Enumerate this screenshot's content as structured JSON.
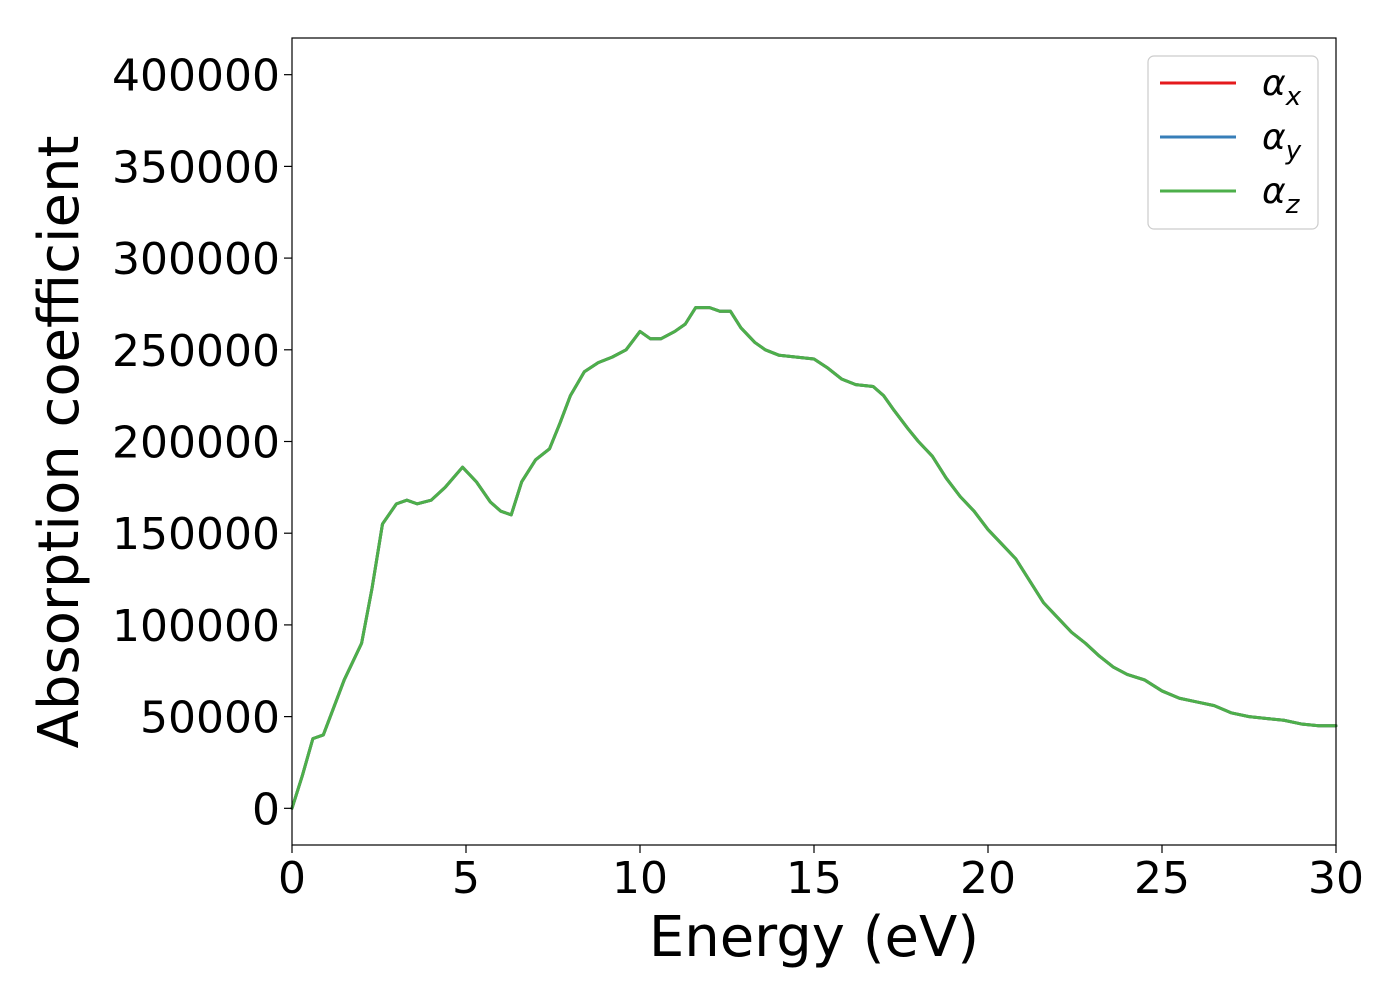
{
  "chart_data": {
    "type": "line",
    "title": "",
    "xlabel": "Energy (eV)",
    "ylabel": "Absorption coefficient",
    "xlim": [
      0,
      30
    ],
    "ylim": [
      -20000,
      420000
    ],
    "xticks": [
      0,
      5,
      10,
      15,
      20,
      25,
      30
    ],
    "yticks": [
      0,
      50000,
      100000,
      150000,
      200000,
      250000,
      300000,
      350000,
      400000
    ],
    "grid": false,
    "legend_position": "top-right",
    "legend": [
      {
        "symbol": "α",
        "subscript": "x",
        "color": "#e41a1c"
      },
      {
        "symbol": "α",
        "subscript": "y",
        "color": "#377eb8"
      },
      {
        "symbol": "α",
        "subscript": "z",
        "color": "#4daf4a"
      }
    ],
    "series": [
      {
        "legend_index": 0,
        "color": "#e41a1c",
        "x": [
          0,
          0.3,
          0.6,
          0.9,
          1.2,
          1.5,
          2.0,
          2.3,
          2.6,
          3.0,
          3.3,
          3.6,
          4.0,
          4.4,
          4.9,
          5.3,
          5.7,
          6.0,
          6.3,
          6.6,
          7.0,
          7.4,
          7.7,
          8.0,
          8.4,
          8.8,
          9.2,
          9.6,
          10.0,
          10.3,
          10.6,
          11.0,
          11.3,
          11.6,
          12.0,
          12.3,
          12.6,
          12.9,
          13.3,
          13.6,
          14.0,
          14.5,
          15.0,
          15.4,
          15.8,
          16.2,
          16.7,
          17.0,
          17.3,
          17.7,
          18.0,
          18.4,
          18.8,
          19.2,
          19.6,
          20.0,
          20.4,
          20.8,
          21.2,
          21.6,
          22.0,
          22.4,
          22.8,
          23.2,
          23.6,
          24.0,
          24.5,
          25.0,
          25.5,
          26.0,
          26.5,
          27.0,
          27.5,
          28.0,
          28.5,
          29.0,
          29.5,
          30.0
        ],
        "values": [
          0,
          18000,
          38000,
          40000,
          55000,
          70000,
          90000,
          120000,
          155000,
          166000,
          168000,
          166000,
          168000,
          175000,
          186000,
          178000,
          167000,
          162000,
          160000,
          178000,
          190000,
          196000,
          210000,
          225000,
          238000,
          243000,
          246000,
          250000,
          260000,
          256000,
          256000,
          260000,
          264000,
          273000,
          273000,
          271000,
          271000,
          262000,
          254000,
          250000,
          247000,
          246000,
          245000,
          240000,
          234000,
          231000,
          230000,
          225000,
          217000,
          207000,
          200000,
          192000,
          180000,
          170000,
          162000,
          152000,
          144000,
          136000,
          124000,
          112000,
          104000,
          96000,
          90000,
          83000,
          77000,
          73000,
          70000,
          64000,
          60000,
          58000,
          56000,
          52000,
          50000,
          49000,
          48000,
          46000,
          45000,
          45000
        ]
      },
      {
        "legend_index": 1,
        "color": "#377eb8",
        "x": [
          0,
          0.3,
          0.6,
          0.9,
          1.2,
          1.5,
          2.0,
          2.3,
          2.6,
          3.0,
          3.3,
          3.6,
          4.0,
          4.4,
          4.9,
          5.3,
          5.7,
          6.0,
          6.3,
          6.6,
          7.0,
          7.4,
          7.7,
          8.0,
          8.4,
          8.8,
          9.2,
          9.6,
          10.0,
          10.3,
          10.6,
          11.0,
          11.3,
          11.6,
          12.0,
          12.3,
          12.6,
          12.9,
          13.3,
          13.6,
          14.0,
          14.5,
          15.0,
          15.4,
          15.8,
          16.2,
          16.7,
          17.0,
          17.3,
          17.7,
          18.0,
          18.4,
          18.8,
          19.2,
          19.6,
          20.0,
          20.4,
          20.8,
          21.2,
          21.6,
          22.0,
          22.4,
          22.8,
          23.2,
          23.6,
          24.0,
          24.5,
          25.0,
          25.5,
          26.0,
          26.5,
          27.0,
          27.5,
          28.0,
          28.5,
          29.0,
          29.5,
          30.0
        ],
        "values": [
          0,
          18000,
          38000,
          40000,
          55000,
          70000,
          90000,
          120000,
          155000,
          166000,
          168000,
          166000,
          168000,
          175000,
          186000,
          178000,
          167000,
          162000,
          160000,
          178000,
          190000,
          196000,
          210000,
          225000,
          238000,
          243000,
          246000,
          250000,
          260000,
          256000,
          256000,
          260000,
          264000,
          273000,
          273000,
          271000,
          271000,
          262000,
          254000,
          250000,
          247000,
          246000,
          245000,
          240000,
          234000,
          231000,
          230000,
          225000,
          217000,
          207000,
          200000,
          192000,
          180000,
          170000,
          162000,
          152000,
          144000,
          136000,
          124000,
          112000,
          104000,
          96000,
          90000,
          83000,
          77000,
          73000,
          70000,
          64000,
          60000,
          58000,
          56000,
          52000,
          50000,
          49000,
          48000,
          46000,
          45000,
          45000
        ]
      },
      {
        "legend_index": 2,
        "color": "#4daf4a",
        "x": [
          0,
          0.3,
          0.6,
          0.9,
          1.2,
          1.5,
          2.0,
          2.3,
          2.6,
          3.0,
          3.3,
          3.6,
          4.0,
          4.4,
          4.9,
          5.3,
          5.7,
          6.0,
          6.3,
          6.6,
          7.0,
          7.4,
          7.7,
          8.0,
          8.4,
          8.8,
          9.2,
          9.6,
          10.0,
          10.3,
          10.6,
          11.0,
          11.3,
          11.6,
          12.0,
          12.3,
          12.6,
          12.9,
          13.3,
          13.6,
          14.0,
          14.5,
          15.0,
          15.4,
          15.8,
          16.2,
          16.7,
          17.0,
          17.3,
          17.7,
          18.0,
          18.4,
          18.8,
          19.2,
          19.6,
          20.0,
          20.4,
          20.8,
          21.2,
          21.6,
          22.0,
          22.4,
          22.8,
          23.2,
          23.6,
          24.0,
          24.5,
          25.0,
          25.5,
          26.0,
          26.5,
          27.0,
          27.5,
          28.0,
          28.5,
          29.0,
          29.5,
          30.0
        ],
        "values": [
          0,
          18000,
          38000,
          40000,
          55000,
          70000,
          90000,
          120000,
          155000,
          166000,
          168000,
          166000,
          168000,
          175000,
          186000,
          178000,
          167000,
          162000,
          160000,
          178000,
          190000,
          196000,
          210000,
          225000,
          238000,
          243000,
          246000,
          250000,
          260000,
          256000,
          256000,
          260000,
          264000,
          273000,
          273000,
          271000,
          271000,
          262000,
          254000,
          250000,
          247000,
          246000,
          245000,
          240000,
          234000,
          231000,
          230000,
          225000,
          217000,
          207000,
          200000,
          192000,
          180000,
          170000,
          162000,
          152000,
          144000,
          136000,
          124000,
          112000,
          104000,
          96000,
          90000,
          83000,
          77000,
          73000,
          70000,
          64000,
          60000,
          58000,
          56000,
          52000,
          50000,
          49000,
          48000,
          46000,
          45000,
          45000
        ]
      }
    ]
  }
}
